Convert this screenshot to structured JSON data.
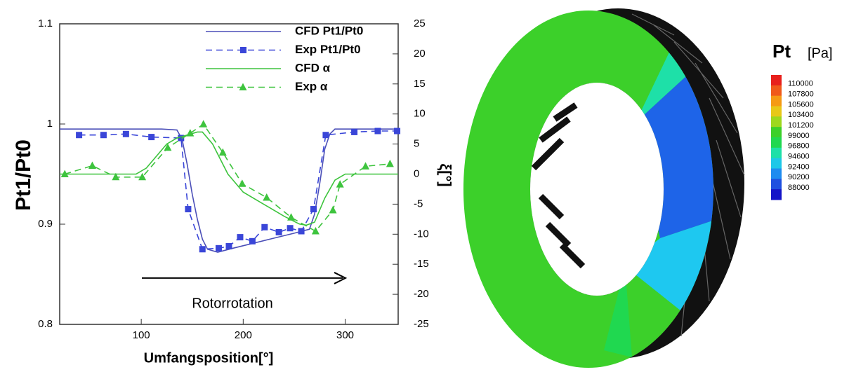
{
  "chart_data": {
    "type": "line",
    "xlabel": "Umfangsposition[°]",
    "ylabel": "Pt1/Pt0",
    "y2label": "ξ[°]",
    "annotation": {
      "text": "Rotorrotation",
      "x": 200,
      "y2": -17.3
    },
    "xlim": [
      20,
      352
    ],
    "xticks": [
      100,
      200,
      300
    ],
    "ylim": [
      0.8,
      1.1
    ],
    "yticks": [
      0.8,
      0.9,
      1,
      1.1
    ],
    "y2lim": [
      -25,
      25
    ],
    "y2ticks": [
      -25,
      -20,
      -15,
      -10,
      -5,
      0,
      5,
      10,
      15,
      20,
      25
    ],
    "series": [
      {
        "name": "CFD Pt1/Pt0",
        "color": "#4b4fb8",
        "style": "solid",
        "marker": "none",
        "x": [
          20,
          40,
          60,
          80,
          100,
          120,
          135,
          140,
          145,
          150,
          155,
          160,
          165,
          175,
          190,
          210,
          230,
          250,
          265,
          270,
          275,
          280,
          285,
          290,
          300,
          320,
          340,
          352
        ],
        "values": [
          0.995,
          0.995,
          0.995,
          0.995,
          0.995,
          0.995,
          0.994,
          0.985,
          0.96,
          0.93,
          0.905,
          0.885,
          0.875,
          0.872,
          0.876,
          0.881,
          0.886,
          0.891,
          0.895,
          0.91,
          0.94,
          0.975,
          0.99,
          0.995,
          0.995,
          0.995,
          0.995,
          0.995
        ]
      },
      {
        "name": "Exp Pt1/Pt0",
        "color": "#3a46d8",
        "style": "dashed",
        "marker": "square",
        "x": [
          39,
          63,
          85,
          110,
          139,
          146,
          160,
          176,
          186,
          197,
          209,
          221,
          235,
          246,
          257,
          269,
          281,
          309,
          332,
          351
        ],
        "values": [
          0.989,
          0.989,
          0.99,
          0.987,
          0.986,
          0.915,
          0.875,
          0.876,
          0.878,
          0.887,
          0.883,
          0.897,
          0.892,
          0.896,
          0.893,
          0.915,
          0.989,
          0.992,
          0.993,
          0.993
        ]
      },
      {
        "name": "CFD α",
        "color": "#3ec43e",
        "style": "solid",
        "marker": "none",
        "axis": "y2",
        "x": [
          20,
          40,
          60,
          80,
          95,
          105,
          115,
          125,
          135,
          145,
          155,
          160,
          170,
          185,
          200,
          220,
          240,
          255,
          262,
          270,
          280,
          290,
          300,
          320,
          352
        ],
        "values": [
          0,
          0,
          0,
          0,
          0,
          1,
          3,
          5,
          6,
          6.5,
          7,
          7,
          5,
          0,
          -3,
          -5,
          -7,
          -8.3,
          -8.5,
          -8,
          -4,
          -1,
          0,
          0,
          0
        ]
      },
      {
        "name": "Exp α",
        "color": "#3ec43e",
        "style": "dashed",
        "marker": "triangle",
        "axis": "y2",
        "x": [
          25,
          52,
          75,
          101,
          126,
          148,
          161,
          180,
          199,
          223,
          247,
          271,
          288,
          295,
          320,
          344
        ],
        "values": [
          0,
          1.4,
          -0.5,
          -0.5,
          4.4,
          6.8,
          8.3,
          3.6,
          -1.6,
          -3.9,
          -7.2,
          -9.5,
          -6,
          -1.7,
          1.3,
          1.7
        ]
      }
    ]
  },
  "contour_legend": {
    "title": "Pt",
    "unit": "[Pa]",
    "levels": [
      110000,
      107800,
      105600,
      103400,
      101200,
      99000,
      96800,
      94600,
      92400,
      90200,
      88000
    ],
    "colors": [
      "#e8201c",
      "#f05a1a",
      "#f59a14",
      "#e8c818",
      "#9ed81e",
      "#3cd02a",
      "#20d850",
      "#1ee0a8",
      "#1ec8e8",
      "#1e8cf0",
      "#1e50e0",
      "#1414c8"
    ]
  }
}
